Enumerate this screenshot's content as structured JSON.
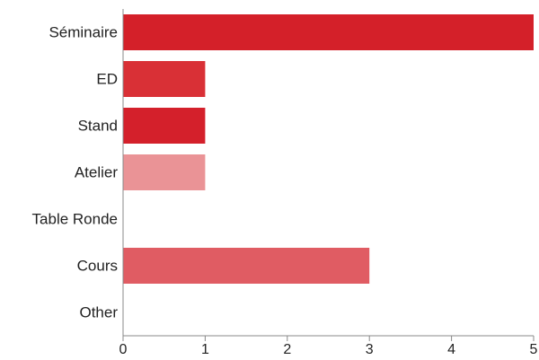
{
  "chart_data": {
    "type": "bar",
    "orientation": "horizontal",
    "categories": [
      "Séminaire",
      "ED",
      "Stand",
      "Atelier",
      "Table Ronde",
      "Cours",
      "Other"
    ],
    "values": [
      5,
      1,
      1,
      1,
      0,
      3,
      0
    ],
    "bar_colors": [
      "#d42029",
      "#d93036",
      "#d4202b",
      "#ea9396",
      "#f2b8ba",
      "#e05c63",
      "#f2b8ba"
    ],
    "xlim": [
      0,
      5
    ],
    "xticks": [
      0,
      1,
      2,
      3,
      4,
      5
    ],
    "title": "",
    "xlabel": "",
    "ylabel": "",
    "grid": false,
    "legend": "none"
  }
}
